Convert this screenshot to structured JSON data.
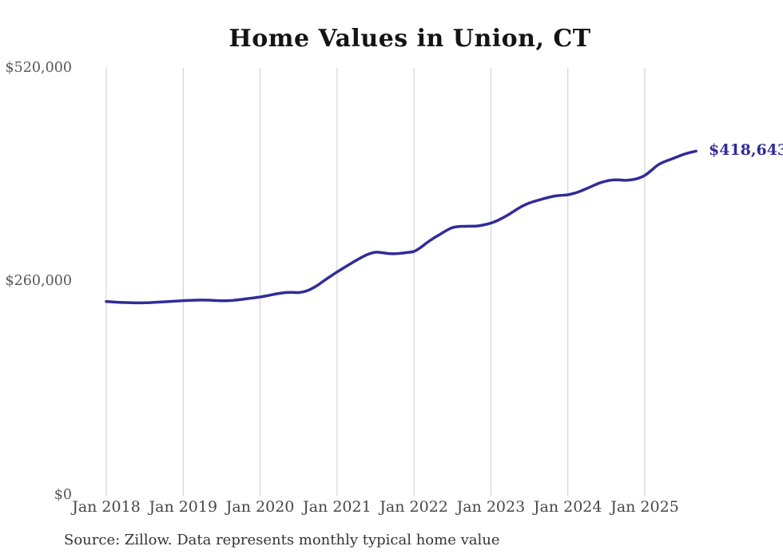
{
  "chart_data": {
    "type": "line",
    "title": "Home Values in Union, CT",
    "x": [
      "2018-01",
      "2018-02",
      "2018-03",
      "2018-04",
      "2018-05",
      "2018-06",
      "2018-07",
      "2018-08",
      "2018-09",
      "2018-10",
      "2018-11",
      "2018-12",
      "2019-01",
      "2019-02",
      "2019-03",
      "2019-04",
      "2019-05",
      "2019-06",
      "2019-07",
      "2019-08",
      "2019-09",
      "2019-10",
      "2019-11",
      "2019-12",
      "2020-01",
      "2020-02",
      "2020-03",
      "2020-04",
      "2020-05",
      "2020-06",
      "2020-07",
      "2020-08",
      "2020-09",
      "2020-10",
      "2020-11",
      "2020-12",
      "2021-01",
      "2021-02",
      "2021-03",
      "2021-04",
      "2021-05",
      "2021-06",
      "2021-07",
      "2021-08",
      "2021-09",
      "2021-10",
      "2021-11",
      "2021-12",
      "2022-01",
      "2022-02",
      "2022-03",
      "2022-04",
      "2022-05",
      "2022-06",
      "2022-07",
      "2022-08",
      "2022-09",
      "2022-10",
      "2022-11",
      "2022-12",
      "2023-01",
      "2023-02",
      "2023-03",
      "2023-04",
      "2023-05",
      "2023-06",
      "2023-07",
      "2023-08",
      "2023-09",
      "2023-10",
      "2023-11",
      "2023-12",
      "2024-01",
      "2024-02",
      "2024-03",
      "2024-04",
      "2024-05",
      "2024-06",
      "2024-07",
      "2024-08",
      "2024-09",
      "2024-10",
      "2024-11",
      "2024-12",
      "2025-01",
      "2025-02",
      "2025-03",
      "2025-04",
      "2025-05",
      "2025-06",
      "2025-07",
      "2025-08",
      "2025-09"
    ],
    "values": [
      235500,
      235000,
      234500,
      234200,
      234000,
      233900,
      234000,
      234300,
      234700,
      235100,
      235600,
      236100,
      236500,
      236900,
      237200,
      237300,
      237100,
      236700,
      236400,
      236500,
      237100,
      238000,
      239000,
      240000,
      241000,
      242400,
      244000,
      245400,
      246400,
      246600,
      246400,
      247800,
      251000,
      255500,
      261000,
      266300,
      271500,
      276300,
      281000,
      285700,
      290000,
      293500,
      295500,
      295000,
      293900,
      293700,
      294300,
      295200,
      296500,
      301000,
      307000,
      312300,
      317000,
      321700,
      325500,
      326800,
      327100,
      327200,
      327600,
      329000,
      331000,
      334000,
      338000,
      342500,
      347500,
      352000,
      355500,
      358000,
      360200,
      362300,
      364000,
      364800,
      365500,
      367300,
      370000,
      373200,
      376700,
      380000,
      382200,
      383500,
      383600,
      383100,
      383800,
      385600,
      389000,
      395000,
      401500,
      405500,
      408500,
      411500,
      414500,
      416800,
      418643
    ],
    "ylim": [
      0,
      520000
    ],
    "y_tick_values": [
      520000,
      260000,
      0
    ],
    "y_tick_labels": [
      "$520,000",
      "$260,000",
      "$0"
    ],
    "x_tick_labels": [
      "Jan 2018",
      "Jan 2019",
      "Jan 2020",
      "Jan 2021",
      "Jan 2022",
      "Jan 2023",
      "Jan 2024",
      "Jan 2025"
    ],
    "end_label": "$418,643",
    "grid": "vertical-only",
    "legend": "none",
    "source_note": "Source: Zillow. Data represents monthly typical home value",
    "colors": {
      "line": "#302C99",
      "grid": "#CCCCCC",
      "title_text": "#141414",
      "y_axis_text": "#585858",
      "x_axis_text": "#474747",
      "source_text": "#343434"
    }
  }
}
